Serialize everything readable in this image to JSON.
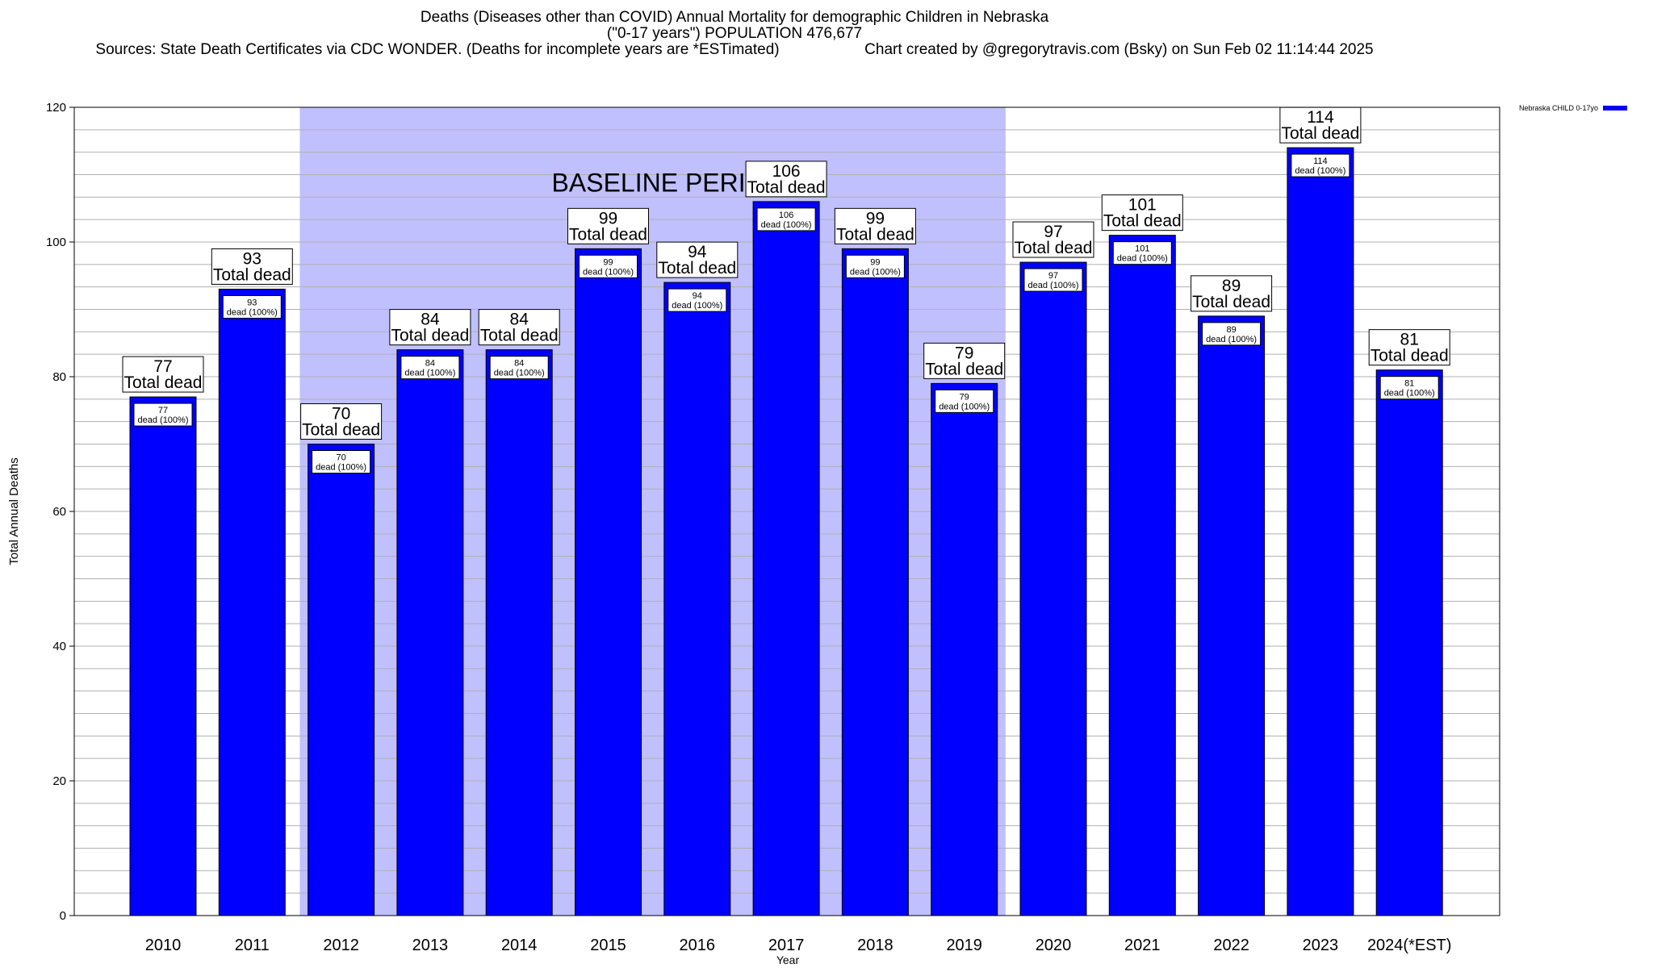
{
  "header": {
    "title": "Deaths (Diseases other than COVID) Annual Mortality for demographic Children in Nebraska",
    "subtitle": "(\"0-17 years\") POPULATION 476,677",
    "sources": "Sources: State Death Certificates via CDC WONDER. (Deaths for incomplete years are *ESTimated)",
    "credit": "Chart created by @gregorytravis.com (Bsky) on Sun Feb 02 11:14:44 2025"
  },
  "chart_data": {
    "type": "bar",
    "title": "Deaths (Diseases other than COVID) Annual Mortality for demographic Children in Nebraska",
    "xlabel": "Year",
    "ylabel": "Total Annual Deaths",
    "ylim": [
      0,
      120
    ],
    "yticks": [
      0,
      20,
      40,
      60,
      80,
      100,
      120
    ],
    "grid": true,
    "legend_position": "top-right",
    "categories": [
      "2010",
      "2011",
      "2012",
      "2013",
      "2014",
      "2015",
      "2016",
      "2017",
      "2018",
      "2019",
      "2020",
      "2021",
      "2022",
      "2023",
      "2024(*EST)"
    ],
    "series": [
      {
        "name": "Nebraska CHILD 0-17yo",
        "color": "#0000ff",
        "values": [
          77,
          93,
          70,
          84,
          84,
          99,
          94,
          106,
          99,
          79,
          97,
          101,
          89,
          114,
          81
        ]
      }
    ],
    "bar_label_top_suffix": "Total dead",
    "bar_label_inner_suffix": "dead (100%)",
    "baseline_region": {
      "label": "BASELINE PERIOD",
      "from": "2012",
      "to": "2019",
      "color": "#c0c0ff"
    }
  }
}
